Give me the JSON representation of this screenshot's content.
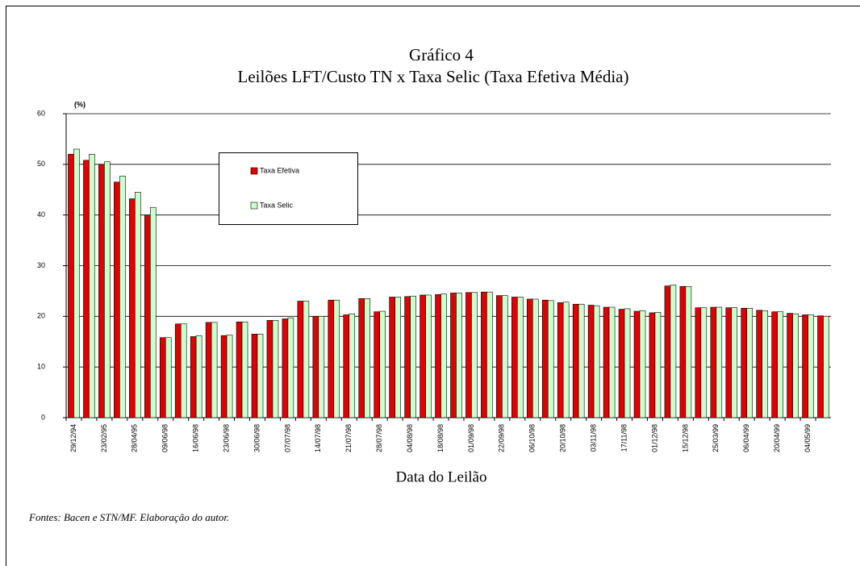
{
  "chart_data": {
    "type": "bar",
    "title": "Gráfico 4",
    "subtitle": "Leilões LFT/Custo TN x Taxa Selic (Taxa Efetiva Média)",
    "y_label": "(%)",
    "x_label": "Data do Leilão",
    "note": "Fontes: Bacen e STN/MF. Elaboração do autor.",
    "categories": [
      "29/12/94",
      null,
      "23/02/95",
      null,
      "28/04/95",
      null,
      "09/06/98",
      null,
      "16/06/98",
      null,
      "23/06/98",
      null,
      "30/06/98",
      null,
      "07/07/98",
      null,
      "14/07/98",
      null,
      "21/07/98",
      null,
      "28/07/98",
      null,
      "04/08/98",
      null,
      "18/08/98",
      null,
      "01/09/98",
      null,
      "22/09/98",
      null,
      "06/10/98",
      null,
      "20/10/98",
      null,
      "03/11/98",
      null,
      "17/11/98",
      null,
      "01/12/98",
      null,
      "15/12/98",
      null,
      "25/03/99",
      null,
      "06/04/99",
      null,
      "20/04/99",
      null,
      "04/05/99",
      null
    ],
    "series": [
      {
        "name": "Taxa  Efetiva",
        "color": "#e00000",
        "values": [
          52,
          50.8,
          50,
          46.5,
          43.2,
          40,
          15.8,
          18.5,
          16,
          18.8,
          16.2,
          18.9,
          16.5,
          19.2,
          19.5,
          23,
          20,
          23.2,
          20.3,
          23.5,
          20.9,
          23.8,
          23.9,
          24.2,
          24.3,
          24.6,
          24.7,
          24.8,
          24.1,
          23.8,
          23.4,
          23.2,
          22.7,
          22.4,
          22.2,
          21.8,
          21.4,
          21,
          20.7,
          26,
          25.9,
          21.7,
          21.8,
          21.7,
          21.6,
          21.2,
          20.9,
          20.6,
          20.3,
          20.1
        ]
      },
      {
        "name": "Taxa  Selic",
        "color": "#ccffcc",
        "values": [
          53,
          52,
          50.5,
          47.7,
          44.5,
          41.5,
          15.8,
          18.5,
          16.2,
          18.8,
          16.3,
          18.9,
          16.5,
          19.2,
          19.7,
          23,
          20,
          23.2,
          20.5,
          23.5,
          21,
          23.8,
          24,
          24.2,
          24.4,
          24.6,
          24.7,
          24.8,
          24.1,
          23.8,
          23.4,
          23.1,
          22.8,
          22.4,
          22.1,
          21.8,
          21.5,
          21.1,
          20.8,
          26.2,
          25.9,
          21.7,
          21.8,
          21.7,
          21.6,
          21.1,
          20.9,
          20.5,
          20.3,
          20
        ]
      }
    ],
    "ylim": [
      0,
      60
    ],
    "yticks": [
      0,
      10,
      20,
      30,
      40,
      50,
      60
    ],
    "grid": true
  }
}
